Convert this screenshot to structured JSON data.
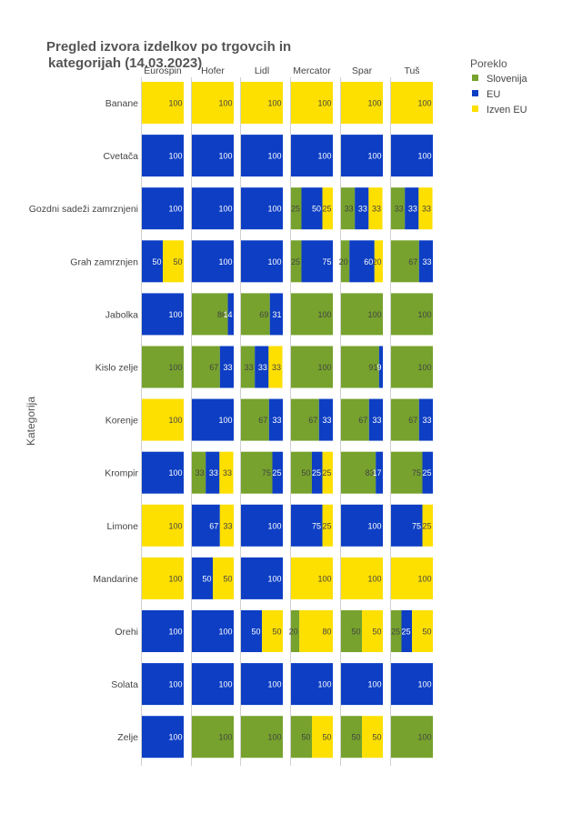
{
  "chart_data": {
    "type": "bar",
    "title": "Pregled izvora izdelkov po trgovcih in kategorijah (14.03.2023)",
    "title_lines": [
      "Pregled izvora izdelkov po trgovcih in",
      "kategorijah (14.03.2023)"
    ],
    "ylabel": "Kategorija",
    "xlim": [
      0,
      100
    ],
    "grid": false,
    "legend_title": "Poreklo",
    "legend_position": "top-right",
    "origins": [
      {
        "name": "Slovenija",
        "color": "#76A22D"
      },
      {
        "name": "EU",
        "color": "#0D3EC4"
      },
      {
        "name": "Izven EU",
        "color": "#FDDF00"
      }
    ],
    "stores": [
      "Eurospin",
      "Hofer",
      "Lidl",
      "Mercator",
      "Spar",
      "Tuš"
    ],
    "categories": [
      "Banane",
      "Cvetača",
      "Gozdni sadeži zamrznjeni",
      "Grah zamrznjen",
      "Jabolka",
      "Kislo zelje",
      "Korenje",
      "Krompir",
      "Limone",
      "Mandarine",
      "Orehi",
      "Solata",
      "Zelje"
    ],
    "values": [
      [
        [
          0,
          0,
          100
        ],
        [
          0,
          0,
          100
        ],
        [
          0,
          0,
          100
        ],
        [
          0,
          0,
          100
        ],
        [
          0,
          0,
          100
        ],
        [
          0,
          0,
          100
        ]
      ],
      [
        [
          0,
          100,
          0
        ],
        [
          0,
          100,
          0
        ],
        [
          0,
          100,
          0
        ],
        [
          0,
          100,
          0
        ],
        [
          0,
          100,
          0
        ],
        [
          0,
          100,
          0
        ]
      ],
      [
        [
          0,
          100,
          0
        ],
        [
          0,
          100,
          0
        ],
        [
          0,
          100,
          0
        ],
        [
          25,
          50,
          25
        ],
        [
          33,
          33,
          33
        ],
        [
          33,
          33,
          33
        ]
      ],
      [
        [
          0,
          50,
          50
        ],
        [
          0,
          100,
          0
        ],
        [
          0,
          100,
          0
        ],
        [
          25,
          75,
          0
        ],
        [
          20,
          60,
          20
        ],
        [
          67,
          33,
          0
        ]
      ],
      [
        [
          0,
          100,
          0
        ],
        [
          86,
          14,
          0
        ],
        [
          69,
          31,
          0
        ],
        [
          100,
          0,
          0
        ],
        [
          100,
          0,
          0
        ],
        [
          100,
          0,
          0
        ]
      ],
      [
        [
          100,
          0,
          0
        ],
        [
          67,
          33,
          0
        ],
        [
          33,
          33,
          33
        ],
        [
          100,
          0,
          0
        ],
        [
          91,
          9,
          0
        ],
        [
          100,
          0,
          0
        ]
      ],
      [
        [
          0,
          0,
          100
        ],
        [
          0,
          100,
          0
        ],
        [
          67,
          33,
          0
        ],
        [
          67,
          33,
          0
        ],
        [
          67,
          33,
          0
        ],
        [
          67,
          33,
          0
        ]
      ],
      [
        [
          0,
          100,
          0
        ],
        [
          33,
          33,
          33
        ],
        [
          75,
          25,
          0
        ],
        [
          50,
          25,
          25
        ],
        [
          83,
          17,
          0
        ],
        [
          75,
          25,
          0
        ]
      ],
      [
        [
          0,
          0,
          100
        ],
        [
          0,
          67,
          33
        ],
        [
          0,
          100,
          0
        ],
        [
          0,
          75,
          25
        ],
        [
          0,
          100,
          0
        ],
        [
          0,
          75,
          25
        ]
      ],
      [
        [
          0,
          0,
          100
        ],
        [
          0,
          50,
          50
        ],
        [
          0,
          100,
          0
        ],
        [
          0,
          0,
          100
        ],
        [
          0,
          0,
          100
        ],
        [
          0,
          0,
          100
        ]
      ],
      [
        [
          0,
          100,
          0
        ],
        [
          0,
          100,
          0
        ],
        [
          0,
          50,
          50
        ],
        [
          20,
          0,
          80
        ],
        [
          50,
          0,
          50
        ],
        [
          25,
          25,
          50
        ]
      ],
      [
        [
          0,
          100,
          0
        ],
        [
          0,
          100,
          0
        ],
        [
          0,
          100,
          0
        ],
        [
          0,
          100,
          0
        ],
        [
          0,
          100,
          0
        ],
        [
          0,
          100,
          0
        ]
      ],
      [
        [
          0,
          100,
          0
        ],
        [
          100,
          0,
          0
        ],
        [
          100,
          0,
          0
        ],
        [
          50,
          0,
          50
        ],
        [
          50,
          0,
          50
        ],
        [
          100,
          0,
          0
        ]
      ]
    ],
    "labels": [
      [
        [
          "",
          "",
          "100"
        ],
        [
          "",
          "",
          "100"
        ],
        [
          "",
          "",
          "100"
        ],
        [
          "",
          "",
          "100"
        ],
        [
          "",
          "",
          "100"
        ],
        [
          "",
          "",
          "100"
        ]
      ],
      [
        [
          "",
          "100",
          ""
        ],
        [
          "",
          "100",
          ""
        ],
        [
          "",
          "100",
          ""
        ],
        [
          "",
          "100",
          ""
        ],
        [
          "",
          "100",
          ""
        ],
        [
          "",
          "100",
          ""
        ]
      ],
      [
        [
          "",
          "100",
          ""
        ],
        [
          "",
          "100",
          ""
        ],
        [
          "",
          "100",
          ""
        ],
        [
          "25",
          "50",
          "25"
        ],
        [
          "33",
          "33",
          "33"
        ],
        [
          "33",
          "33",
          "33"
        ]
      ],
      [
        [
          "",
          "50",
          "50"
        ],
        [
          "",
          "100",
          ""
        ],
        [
          "",
          "100",
          ""
        ],
        [
          "25",
          "75",
          ""
        ],
        [
          "20",
          "60",
          "20"
        ],
        [
          "67",
          "33",
          ""
        ]
      ],
      [
        [
          "",
          "100",
          ""
        ],
        [
          "86",
          "14",
          ""
        ],
        [
          "69",
          "31",
          ""
        ],
        [
          "100",
          "",
          ""
        ],
        [
          "100",
          "",
          ""
        ],
        [
          "100",
          "",
          ""
        ]
      ],
      [
        [
          "100",
          "",
          ""
        ],
        [
          "67",
          "33",
          ""
        ],
        [
          "33",
          "33",
          "33"
        ],
        [
          "100",
          "",
          ""
        ],
        [
          "91",
          "9",
          ""
        ],
        [
          "100",
          "",
          ""
        ]
      ],
      [
        [
          "",
          "",
          "100"
        ],
        [
          "",
          "100",
          ""
        ],
        [
          "67",
          "33",
          ""
        ],
        [
          "67",
          "33",
          ""
        ],
        [
          "67",
          "33",
          ""
        ],
        [
          "67",
          "33",
          ""
        ]
      ],
      [
        [
          "",
          "100",
          ""
        ],
        [
          "33",
          "33",
          "33"
        ],
        [
          "75",
          "25",
          ""
        ],
        [
          "50",
          "25",
          "25"
        ],
        [
          "83",
          "17",
          ""
        ],
        [
          "75",
          "25",
          ""
        ]
      ],
      [
        [
          "",
          "",
          "100"
        ],
        [
          "",
          "67",
          "33"
        ],
        [
          "",
          "100",
          ""
        ],
        [
          "",
          "75",
          "25"
        ],
        [
          "",
          "100",
          ""
        ],
        [
          "",
          "75",
          "25"
        ]
      ],
      [
        [
          "",
          "",
          "100"
        ],
        [
          "",
          "50",
          "50"
        ],
        [
          "",
          "100",
          ""
        ],
        [
          "",
          "",
          "100"
        ],
        [
          "",
          "",
          "100"
        ],
        [
          "",
          "",
          "100"
        ]
      ],
      [
        [
          "",
          "100",
          ""
        ],
        [
          "",
          "100",
          ""
        ],
        [
          "",
          "50",
          "50"
        ],
        [
          "20",
          "",
          "80"
        ],
        [
          "50",
          "",
          "50"
        ],
        [
          "25",
          "25",
          "50"
        ]
      ],
      [
        [
          "",
          "100",
          ""
        ],
        [
          "",
          "100",
          ""
        ],
        [
          "",
          "100",
          ""
        ],
        [
          "",
          "100",
          ""
        ],
        [
          "",
          "100",
          ""
        ],
        [
          "",
          "100",
          ""
        ]
      ],
      [
        [
          "",
          "100",
          ""
        ],
        [
          "100",
          "",
          ""
        ],
        [
          "100",
          "",
          ""
        ],
        [
          "50",
          "",
          "50"
        ],
        [
          "50",
          "",
          "50"
        ],
        [
          "100",
          "",
          ""
        ]
      ]
    ]
  }
}
